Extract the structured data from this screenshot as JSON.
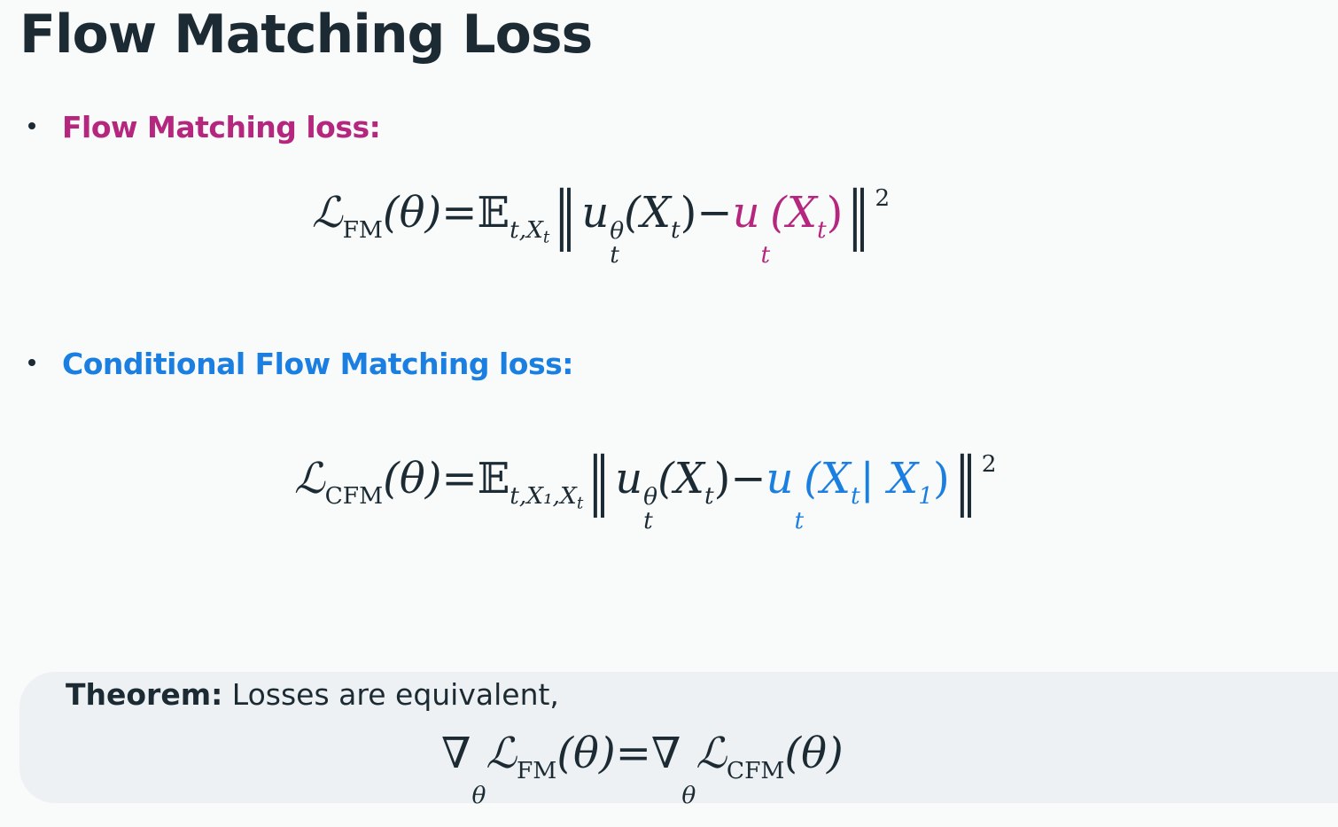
{
  "slide": {
    "title": "Flow Matching Loss",
    "colors": {
      "text": "#1c2b33",
      "fm": "#b5267e",
      "cfm": "#1a7fe0",
      "box": "#edf1f3"
    },
    "bullets": [
      {
        "label": "Flow Matching loss:",
        "color": "#b5267e"
      },
      {
        "label": "Conditional Flow Matching loss:",
        "color": "#1a7fe0"
      }
    ],
    "formulas": {
      "fm": [
        {
          "t": "ℒ",
          "sub": "FM",
          "it": true
        },
        {
          "t": "(θ)",
          "it": true
        },
        {
          "t": " = "
        },
        {
          "t": "𝔼",
          "sub": "t,X",
          "subsub": "t"
        },
        {
          "t": " ‖",
          "norm": true
        },
        {
          "t": "u",
          "it": true,
          "sup": "θ",
          "subb": "t"
        },
        {
          "t": "(X",
          "it": true
        },
        {
          "t": "t",
          "sub2": true
        },
        {
          "t": ")"
        },
        {
          "t": " − "
        },
        {
          "t": "u",
          "it": true,
          "subb": "t",
          "color": "#b5267e"
        },
        {
          "t": "(X",
          "it": true,
          "color": "#b5267e"
        },
        {
          "t": "t",
          "sub2": true,
          "color": "#b5267e"
        },
        {
          "t": ")",
          "color": "#b5267e"
        },
        {
          "t": "‖",
          "norm": true
        },
        {
          "t": "2",
          "supOnly": true
        }
      ],
      "cfm": [
        {
          "t": "ℒ",
          "sub": "CFM",
          "it": true
        },
        {
          "t": "(θ)",
          "it": true
        },
        {
          "t": " = "
        },
        {
          "t": "𝔼",
          "sub": "t,X₁,X",
          "subsub": "t"
        },
        {
          "t": " ‖",
          "norm": true
        },
        {
          "t": "u",
          "it": true,
          "sup": "θ",
          "subb": "t"
        },
        {
          "t": "(X",
          "it": true
        },
        {
          "t": "t",
          "sub2": true
        },
        {
          "t": ")"
        },
        {
          "t": " − "
        },
        {
          "t": "u",
          "it": true,
          "subb": "t",
          "color": "#1a7fe0"
        },
        {
          "t": "(X",
          "it": true,
          "color": "#1a7fe0"
        },
        {
          "t": "t",
          "sub2": true,
          "color": "#1a7fe0"
        },
        {
          "t": " | X",
          "it": true,
          "color": "#1a7fe0"
        },
        {
          "t": "1",
          "sub2": true,
          "color": "#1a7fe0"
        },
        {
          "t": ")",
          "color": "#1a7fe0"
        },
        {
          "t": "‖",
          "norm": true
        },
        {
          "t": "2",
          "supOnly": true
        }
      ],
      "theorem": [
        {
          "t": "∇",
          "subb": "θ"
        },
        {
          "t": "ℒ",
          "sub": "FM",
          "it": true
        },
        {
          "t": "(θ)",
          "it": true
        },
        {
          "t": " = "
        },
        {
          "t": "∇",
          "subb": "θ"
        },
        {
          "t": "ℒ",
          "sub": "CFM",
          "it": true
        },
        {
          "t": "(θ)",
          "it": true
        }
      ]
    },
    "theorem": {
      "label": "Theorem:",
      "text": " Losses are equivalent,"
    }
  }
}
